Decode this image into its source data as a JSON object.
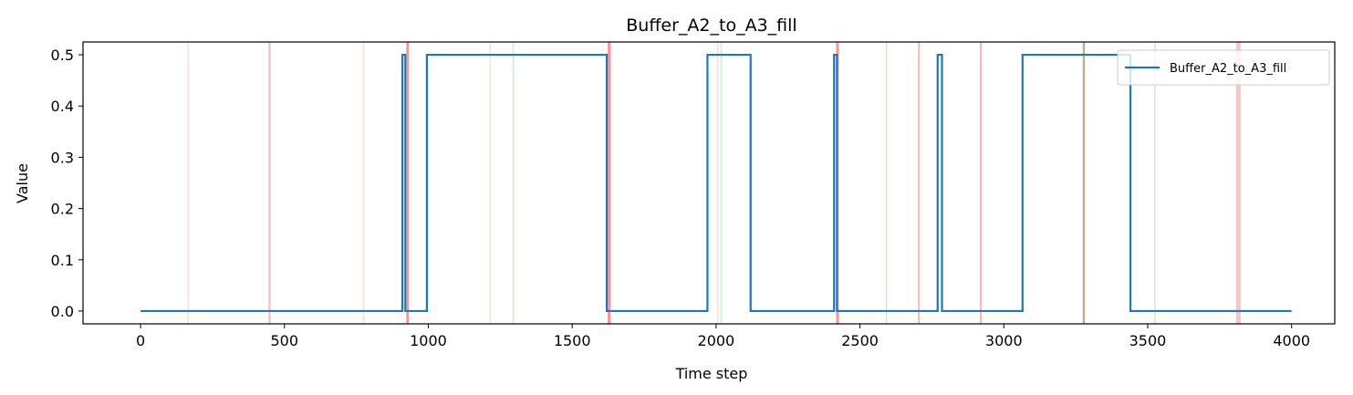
{
  "chart_data": {
    "type": "line",
    "title": "Buffer_A2_to_A3_fill",
    "xlabel": "Time step",
    "ylabel": "Value",
    "xlim": [
      -200,
      4150
    ],
    "ylim": [
      -0.025,
      0.525
    ],
    "xticks": [
      0,
      500,
      1000,
      1500,
      2000,
      2500,
      3000,
      3500,
      4000
    ],
    "xtick_labels": [
      "0",
      "500",
      "1000",
      "1500",
      "2000",
      "2500",
      "3000",
      "3500",
      "4000"
    ],
    "yticks": [
      0.0,
      0.1,
      0.2,
      0.3,
      0.4,
      0.5
    ],
    "ytick_labels": [
      "0.0",
      "0.1",
      "0.2",
      "0.3",
      "0.4",
      "0.5"
    ],
    "grid": false,
    "legend_position": "upper right",
    "series": [
      {
        "name": "Buffer_A2_to_A3_fill",
        "color": "#1f77b4",
        "step": true,
        "x": [
          0,
          910,
          910,
          920,
          920,
          995,
          995,
          1620,
          1620,
          1970,
          1970,
          2120,
          2120,
          2410,
          2410,
          2420,
          2420,
          2770,
          2770,
          2785,
          2785,
          3065,
          3065,
          3440,
          3440,
          4000
        ],
        "y": [
          0,
          0,
          0.5,
          0.5,
          0,
          0,
          0.5,
          0.5,
          0,
          0,
          0.5,
          0.5,
          0,
          0,
          0.5,
          0.5,
          0,
          0,
          0.5,
          0.5,
          0,
          0,
          0.5,
          0.5,
          0,
          0
        ]
      }
    ],
    "vertical_markers": [
      {
        "x": 165,
        "color": "#f4a582",
        "opacity": 0.35,
        "width": 1.5
      },
      {
        "x": 448,
        "color": "#ff6b6b",
        "opacity": 0.5,
        "width": 2
      },
      {
        "x": 775,
        "color": "#f4a582",
        "opacity": 0.35,
        "width": 1.5
      },
      {
        "x": 928,
        "color": "#ff4d4d",
        "opacity": 0.6,
        "width": 3
      },
      {
        "x": 1215,
        "color": "#f4a582",
        "opacity": 0.35,
        "width": 1.5
      },
      {
        "x": 1295,
        "color": "#9ccc8c",
        "opacity": 0.45,
        "width": 1.5
      },
      {
        "x": 1628,
        "color": "#ff4d4d",
        "opacity": 0.6,
        "width": 3
      },
      {
        "x": 2005,
        "color": "#f4a582",
        "opacity": 0.35,
        "width": 1.5
      },
      {
        "x": 2018,
        "color": "#9ccc8c",
        "opacity": 0.45,
        "width": 1.5
      },
      {
        "x": 2422,
        "color": "#ff4d4d",
        "opacity": 0.6,
        "width": 3
      },
      {
        "x": 2592,
        "color": "#9ccc8c",
        "opacity": 0.45,
        "width": 1.5
      },
      {
        "x": 2705,
        "color": "#ff6b6b",
        "opacity": 0.5,
        "width": 2
      },
      {
        "x": 2920,
        "color": "#ff6b6b",
        "opacity": 0.5,
        "width": 2
      },
      {
        "x": 3278,
        "color": "#a89060",
        "opacity": 0.7,
        "width": 2.5
      },
      {
        "x": 3525,
        "color": "#9ccc8c",
        "opacity": 0.45,
        "width": 1.5
      },
      {
        "x": 3815,
        "color": "#ff4d4d",
        "opacity": 0.35,
        "width": 5
      }
    ]
  }
}
